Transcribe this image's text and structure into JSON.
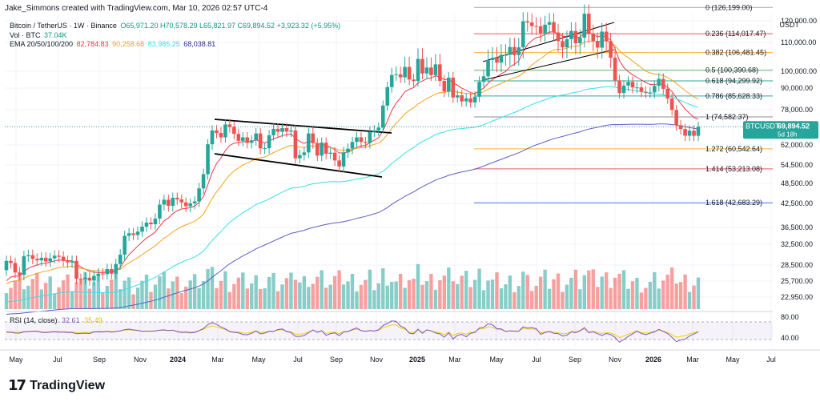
{
  "header": {
    "author_note": "Jake_Simmons created with TradingView.com, Mar 10, 2026 02:57 UTC-4",
    "symbol_line": "Bitcoin / TetherUS · 1W · Binance",
    "ohlc": "O65,971.20 H70,578.29 L65,821.97 C69,894.52 +3,923.32 (+5.95%)",
    "vol_label": "Vol · BTC",
    "vol_value": "37.04K",
    "ema_label": "EMA 20/50/100/200",
    "ema_values": [
      "82,784.83",
      "90,258.68",
      "83,985.25",
      "68,038.81"
    ],
    "rsi_label": "RSI (14, close)",
    "rsi_values": [
      "32.61",
      "35.49"
    ]
  },
  "axis_unit": "USDT",
  "brand": {
    "logo": "17",
    "name": "TradingView"
  },
  "colors": {
    "up": "#26a69a",
    "down": "#ef5350",
    "ema20": "#f23645",
    "ema50": "#f7a21b",
    "ema100": "#35e0e9",
    "ema200": "#5b5fc7",
    "fib": "#9598a1",
    "rsi": "#7e57c2",
    "rsi_ma": "#f5d100"
  },
  "chart_data": {
    "type": "candlestick",
    "symbol": "BTCUSDT",
    "timeframe": "1W",
    "last_price": "69,894.52",
    "countdown": "5d 18h",
    "y_ticks": [
      "120,000.00",
      "110,000.00",
      "100,000.00",
      "90,000.00",
      "78,000.00",
      "70,000.00",
      "62,000.00",
      "54,500.00",
      "48,500.00",
      "42,500.00",
      "36,500.00",
      "32,500.00",
      "28,500.00",
      "25,700.00",
      "22,950.00"
    ],
    "y_tick_values": [
      120000,
      110000,
      100000,
      90000,
      78000,
      70000,
      62000,
      54500,
      48500,
      42500,
      36500,
      32500,
      28500,
      25700,
      22950
    ],
    "x_ticks": [
      "May",
      "Jul",
      "Sep",
      "Nov",
      "2024",
      "Mar",
      "May",
      "Jul",
      "Sep",
      "Nov",
      "2025",
      "Mar",
      "May",
      "Jul",
      "Sep",
      "Nov",
      "2026",
      "Mar",
      "May",
      "Jul"
    ],
    "fib_levels": [
      {
        "label": "0 (126,199.00)",
        "price": 126199,
        "color": "#9598a1"
      },
      {
        "label": "0.236 (114,017.47)",
        "price": 114017.47,
        "color": "#f23645"
      },
      {
        "label": "0.382 (106,481.45)",
        "price": 106481.45,
        "color": "#f7a21b"
      },
      {
        "label": "0.5 (100,390.68)",
        "price": 100390.68,
        "color": "#4caf50"
      },
      {
        "label": "0.618 (94,299.92)",
        "price": 94299.92,
        "color": "#089981"
      },
      {
        "label": "0.786 (85,628.33)",
        "price": 85628.33,
        "color": "#0097a7"
      },
      {
        "label": "1 (74,582.37)",
        "price": 74582.37,
        "color": "#787b86"
      },
      {
        "label": "1.272 (60,542.64)",
        "price": 60542.64,
        "color": "#f7a21b"
      },
      {
        "label": "1.414 (53,213.08)",
        "price": 53213.08,
        "color": "#f23645"
      },
      {
        "label": "1.618 (42,683.29)",
        "price": 42683.29,
        "color": "#2962ff"
      }
    ],
    "rsi_ticks": [
      "80.00",
      "40.00"
    ],
    "rsi_tick_values": [
      80,
      40
    ],
    "candles_close": [
      29300,
      28900,
      27200,
      26800,
      30200,
      30400,
      29700,
      29400,
      29900,
      29200,
      29800,
      30300,
      30100,
      29300,
      29000,
      29300,
      26100,
      26000,
      26300,
      25800,
      26600,
      27000,
      26900,
      27800,
      27000,
      28700,
      30500,
      34500,
      35100,
      34700,
      35500,
      36700,
      37700,
      37300,
      38700,
      42200,
      43600,
      41900,
      44200,
      43700,
      42800,
      41800,
      42500,
      43100,
      47000,
      51500,
      62300,
      68300,
      67200,
      65300,
      71000,
      69800,
      66800,
      63800,
      65300,
      62900,
      64000,
      67000,
      60700,
      60800,
      66200,
      69000,
      67700,
      69300,
      67800,
      68300,
      57000,
      58200,
      59200,
      67000,
      62800,
      58000,
      63000,
      58700,
      59100,
      56200,
      54000,
      59200,
      60600,
      63300,
      65300,
      63300,
      62900,
      67700,
      68300,
      69500,
      80300,
      90600,
      97800,
      98200,
      96400,
      101500,
      95100,
      94200,
      104300,
      98700,
      101300,
      97700,
      102400,
      94300,
      88100,
      96200,
      84800,
      86000,
      82600,
      84300,
      82000,
      85200,
      93700,
      97000,
      103900,
      104700,
      103000,
      105700,
      105700,
      108400,
      105600,
      108300,
      119800,
      119200,
      117600,
      117500,
      114300,
      118200,
      119400,
      114600,
      110600,
      108300,
      111500,
      115300,
      109700,
      112200,
      123300,
      114000,
      110700,
      108200,
      115000,
      110600,
      104700,
      94600,
      87300,
      91500,
      93700,
      90400,
      90400,
      88000,
      87500,
      87600,
      91300,
      95500,
      89600,
      84200,
      77900,
      70600,
      68900,
      66000,
      68200,
      65970,
      69894
    ],
    "candles_open": [
      27600,
      29300,
      28900,
      27200,
      26800,
      30200,
      30400,
      29700,
      29400,
      29900,
      29200,
      29800,
      30300,
      30100,
      29300,
      29000,
      29300,
      26100,
      26000,
      26300,
      25800,
      26600,
      27000,
      26900,
      27800,
      27000,
      28700,
      30500,
      34500,
      35100,
      34700,
      35500,
      36700,
      37700,
      37300,
      38700,
      42200,
      43600,
      41900,
      44200,
      43700,
      42800,
      41800,
      42500,
      43100,
      47000,
      51500,
      62300,
      68300,
      67200,
      65300,
      71000,
      69800,
      66800,
      63800,
      65300,
      62900,
      64000,
      67000,
      60700,
      60800,
      66200,
      69000,
      67700,
      69300,
      67800,
      68300,
      57000,
      58200,
      59200,
      67000,
      62800,
      58000,
      63000,
      58700,
      59100,
      56200,
      54000,
      59200,
      60600,
      63300,
      65300,
      63300,
      62900,
      67700,
      68300,
      69500,
      80300,
      90600,
      97800,
      98200,
      96400,
      101500,
      95100,
      94200,
      104300,
      98700,
      101300,
      97700,
      102400,
      94300,
      88100,
      96200,
      84800,
      86000,
      82600,
      84300,
      82000,
      85200,
      93700,
      97000,
      103900,
      104700,
      103000,
      105700,
      105700,
      108400,
      105600,
      108300,
      119800,
      119200,
      117600,
      117500,
      114300,
      118200,
      119400,
      114600,
      110600,
      108300,
      111500,
      115300,
      109700,
      112200,
      123300,
      114000,
      110700,
      108200,
      115000,
      110600,
      104700,
      94600,
      87300,
      91500,
      93700,
      90400,
      90400,
      88000,
      87500,
      87600,
      91300,
      95500,
      89600,
      84200,
      77900,
      70600,
      68900,
      66000,
      68200,
      65971
    ]
  }
}
